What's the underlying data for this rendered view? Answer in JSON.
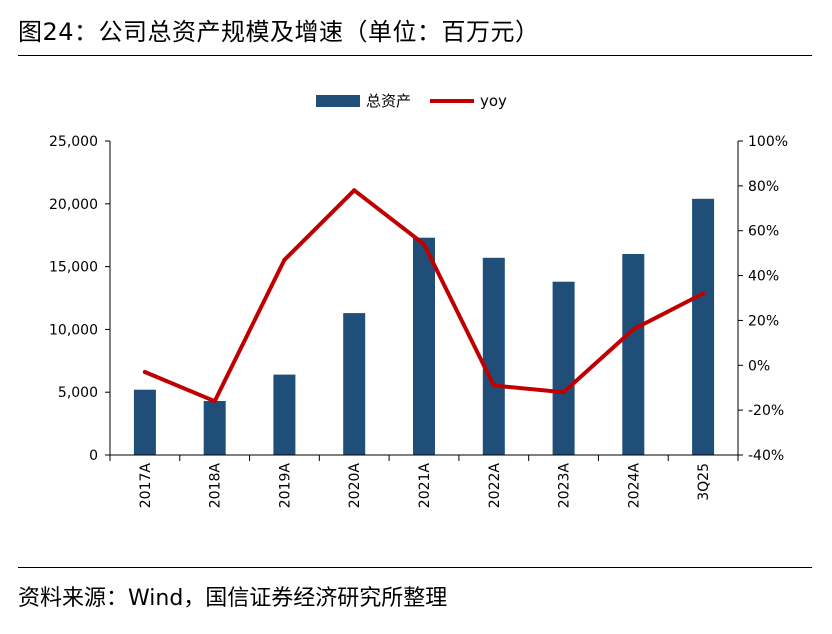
{
  "figure": {
    "title": "图24：公司总资产规模及增速（单位：百万元）",
    "source": "资料来源：Wind，国信证券经济研究所整理"
  },
  "colors": {
    "bar": "#1f4e79",
    "line": "#c00000",
    "axis": "#000000",
    "text": "#000000"
  },
  "chart_data": {
    "type": "bar",
    "categories": [
      "2017A",
      "2018A",
      "2019A",
      "2020A",
      "2021A",
      "2022A",
      "2023A",
      "2024A",
      "3Q25"
    ],
    "series": [
      {
        "name": "总资产",
        "type": "bar",
        "axis": "left",
        "values": [
          5200,
          4300,
          6400,
          11300,
          17300,
          15700,
          13800,
          16000,
          20400
        ]
      },
      {
        "name": "yoy",
        "type": "line",
        "axis": "right",
        "values": [
          -3,
          -16,
          47,
          78,
          54,
          -9,
          -12,
          16,
          32
        ]
      }
    ],
    "y_left": {
      "ylim": [
        0,
        25000
      ],
      "ticks": [
        0,
        5000,
        10000,
        15000,
        20000,
        25000
      ],
      "tick_labels": [
        "0",
        "5,000",
        "10,000",
        "15,000",
        "20,000",
        "25,000"
      ]
    },
    "y_right": {
      "ylim": [
        -40,
        100
      ],
      "ticks": [
        -40,
        -20,
        0,
        20,
        40,
        60,
        80,
        100
      ],
      "tick_labels": [
        "-40%",
        "-20%",
        "0%",
        "20%",
        "40%",
        "60%",
        "80%",
        "100%"
      ]
    },
    "legend_position": "top-center",
    "grid": false
  }
}
